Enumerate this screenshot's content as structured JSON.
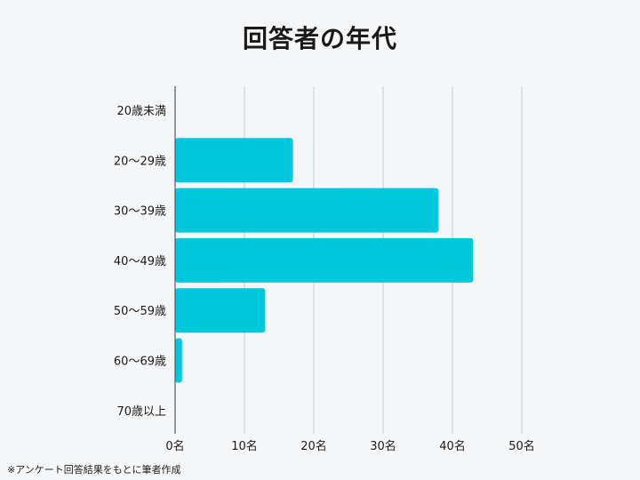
{
  "chart_data": {
    "type": "bar",
    "orientation": "horizontal",
    "title": "回答者の年代",
    "categories": [
      "20歳未満",
      "20～29歳",
      "30～39歳",
      "40～49歳",
      "50～59歳",
      "60～69歳",
      "70歳以上"
    ],
    "values": [
      0,
      17,
      38,
      43,
      13,
      1,
      0
    ],
    "x_ticks": [
      "0名",
      "10名",
      "20名",
      "30名",
      "40名",
      "50名"
    ],
    "xlim": [
      0,
      50
    ],
    "grid": true,
    "bar_color": "#00c8dc",
    "grid_color": "#c8cacd",
    "axis_color": "#555555"
  },
  "footnote": "※アンケート回答結果をもとに筆者作成"
}
